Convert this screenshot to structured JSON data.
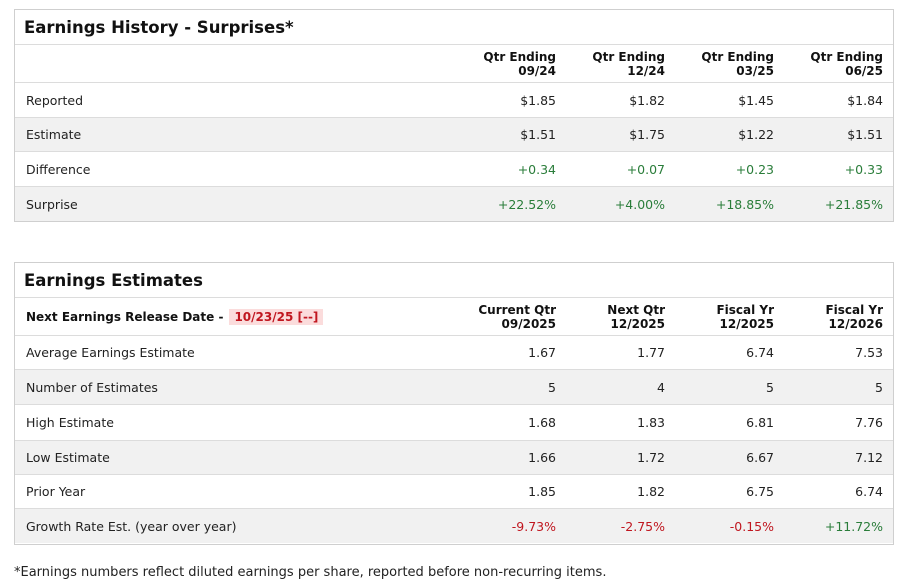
{
  "history": {
    "title": "Earnings History - Surprises*",
    "headers": [
      {
        "l1": "Qtr Ending",
        "l2": "09/24"
      },
      {
        "l1": "Qtr Ending",
        "l2": "12/24"
      },
      {
        "l1": "Qtr Ending",
        "l2": "03/25"
      },
      {
        "l1": "Qtr Ending",
        "l2": "06/25"
      }
    ],
    "rows": [
      {
        "label": "Reported",
        "values": [
          "$1.85",
          "$1.82",
          "$1.45",
          "$1.84"
        ]
      },
      {
        "label": "Estimate",
        "values": [
          "$1.51",
          "$1.75",
          "$1.22",
          "$1.51"
        ]
      },
      {
        "label": "Difference",
        "values": [
          "+0.34",
          "+0.07",
          "+0.23",
          "+0.33"
        ]
      },
      {
        "label": "Surprise",
        "values": [
          "+22.52%",
          "+4.00%",
          "+18.85%",
          "+21.85%"
        ]
      }
    ]
  },
  "estimates": {
    "title": "Earnings Estimates",
    "release_label": "Next Earnings Release Date -",
    "release_date": "10/23/25 [--]",
    "headers": [
      {
        "l1": "Current Qtr",
        "l2": "09/2025"
      },
      {
        "l1": "Next Qtr",
        "l2": "12/2025"
      },
      {
        "l1": "Fiscal Yr",
        "l2": "12/2025"
      },
      {
        "l1": "Fiscal Yr",
        "l2": "12/2026"
      }
    ],
    "rows": [
      {
        "label": "Average Earnings Estimate",
        "values": [
          "1.67",
          "1.77",
          "6.74",
          "7.53"
        ]
      },
      {
        "label": "Number of Estimates",
        "values": [
          "5",
          "4",
          "5",
          "5"
        ]
      },
      {
        "label": "High Estimate",
        "values": [
          "1.68",
          "1.83",
          "6.81",
          "7.76"
        ]
      },
      {
        "label": "Low Estimate",
        "values": [
          "1.66",
          "1.72",
          "6.67",
          "7.12"
        ]
      },
      {
        "label": "Prior Year",
        "values": [
          "1.85",
          "1.82",
          "6.75",
          "6.74"
        ]
      },
      {
        "label": "Growth Rate Est. (year over year)",
        "values": [
          "-9.73%",
          "-2.75%",
          "-0.15%",
          "+11.72%"
        ]
      }
    ]
  },
  "colors": {
    "positive": "#2a7d3a",
    "negative": "#c0161f",
    "date_badge_bg": "#fbdcdc"
  },
  "footnote": "*Earnings numbers reflect diluted earnings per share, reported before non-recurring items."
}
